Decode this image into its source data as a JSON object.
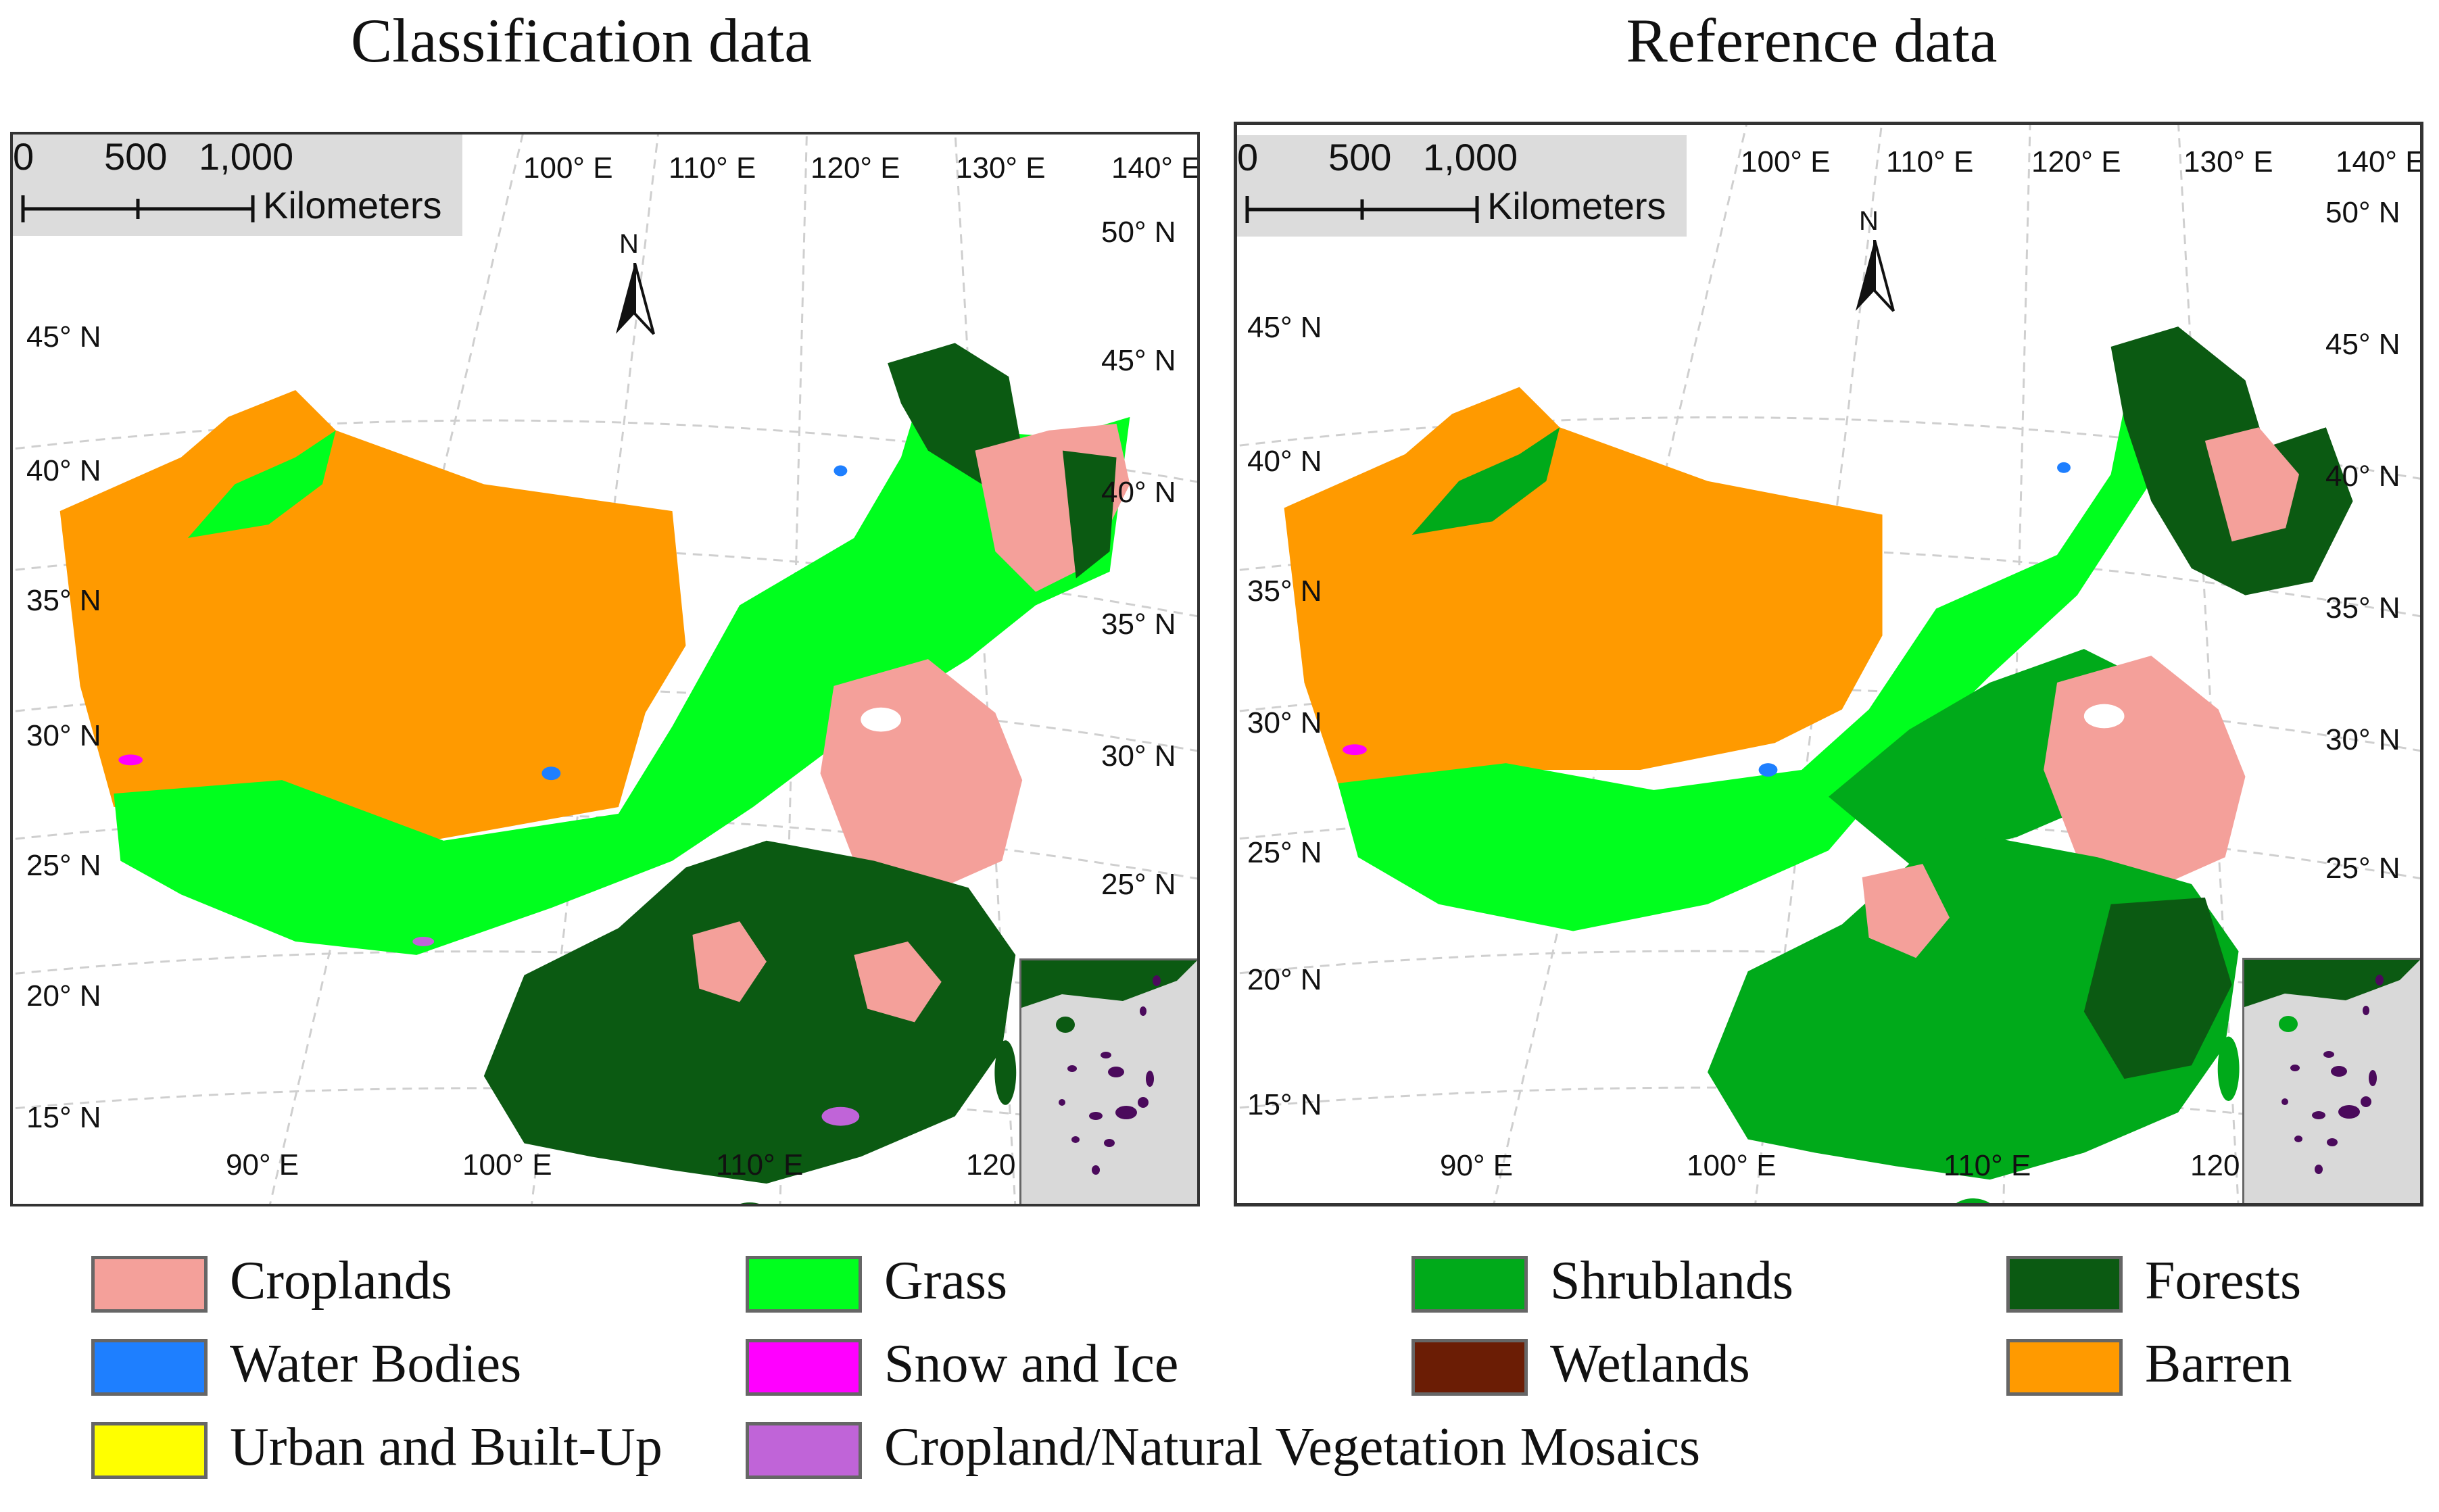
{
  "titles": {
    "left": "Classification data",
    "right": "Reference data"
  },
  "scale": {
    "ticks": [
      "0",
      "500",
      "1,000"
    ],
    "unit": "Kilometers"
  },
  "north_label": "N",
  "longitude_labels_top": [
    "100° E",
    "110° E",
    "120° E",
    "130° E",
    "140° E"
  ],
  "longitude_labels_bottom": [
    "90° E",
    "100° E",
    "110° E",
    "120"
  ],
  "latitude_labels_left": [
    "45° N",
    "40° N",
    "35° N",
    "30° N",
    "25° N",
    "20° N",
    "15° N"
  ],
  "latitude_labels_right": [
    "50° N",
    "45° N",
    "40° N",
    "35° N",
    "30° N",
    "25° N"
  ],
  "legend": [
    {
      "label": "Croplands",
      "color": "#f4a09a"
    },
    {
      "label": "Grass",
      "color": "#00ff1e"
    },
    {
      "label": "Shrublands",
      "color": "#00aa1a"
    },
    {
      "label": "Forests",
      "color": "#0b5a12"
    },
    {
      "label": "Water Bodies",
      "color": "#1e7fff"
    },
    {
      "label": "Snow and Ice",
      "color": "#ff00ff"
    },
    {
      "label": "Wetlands",
      "color": "#6b1d05"
    },
    {
      "label": "Barren",
      "color": "#ff9a00"
    },
    {
      "label": "Urban and Built-Up",
      "color": "#ffff00"
    },
    {
      "label": "Cropland/Natural Vegetation Mosaics",
      "color": "#c064d8"
    }
  ]
}
